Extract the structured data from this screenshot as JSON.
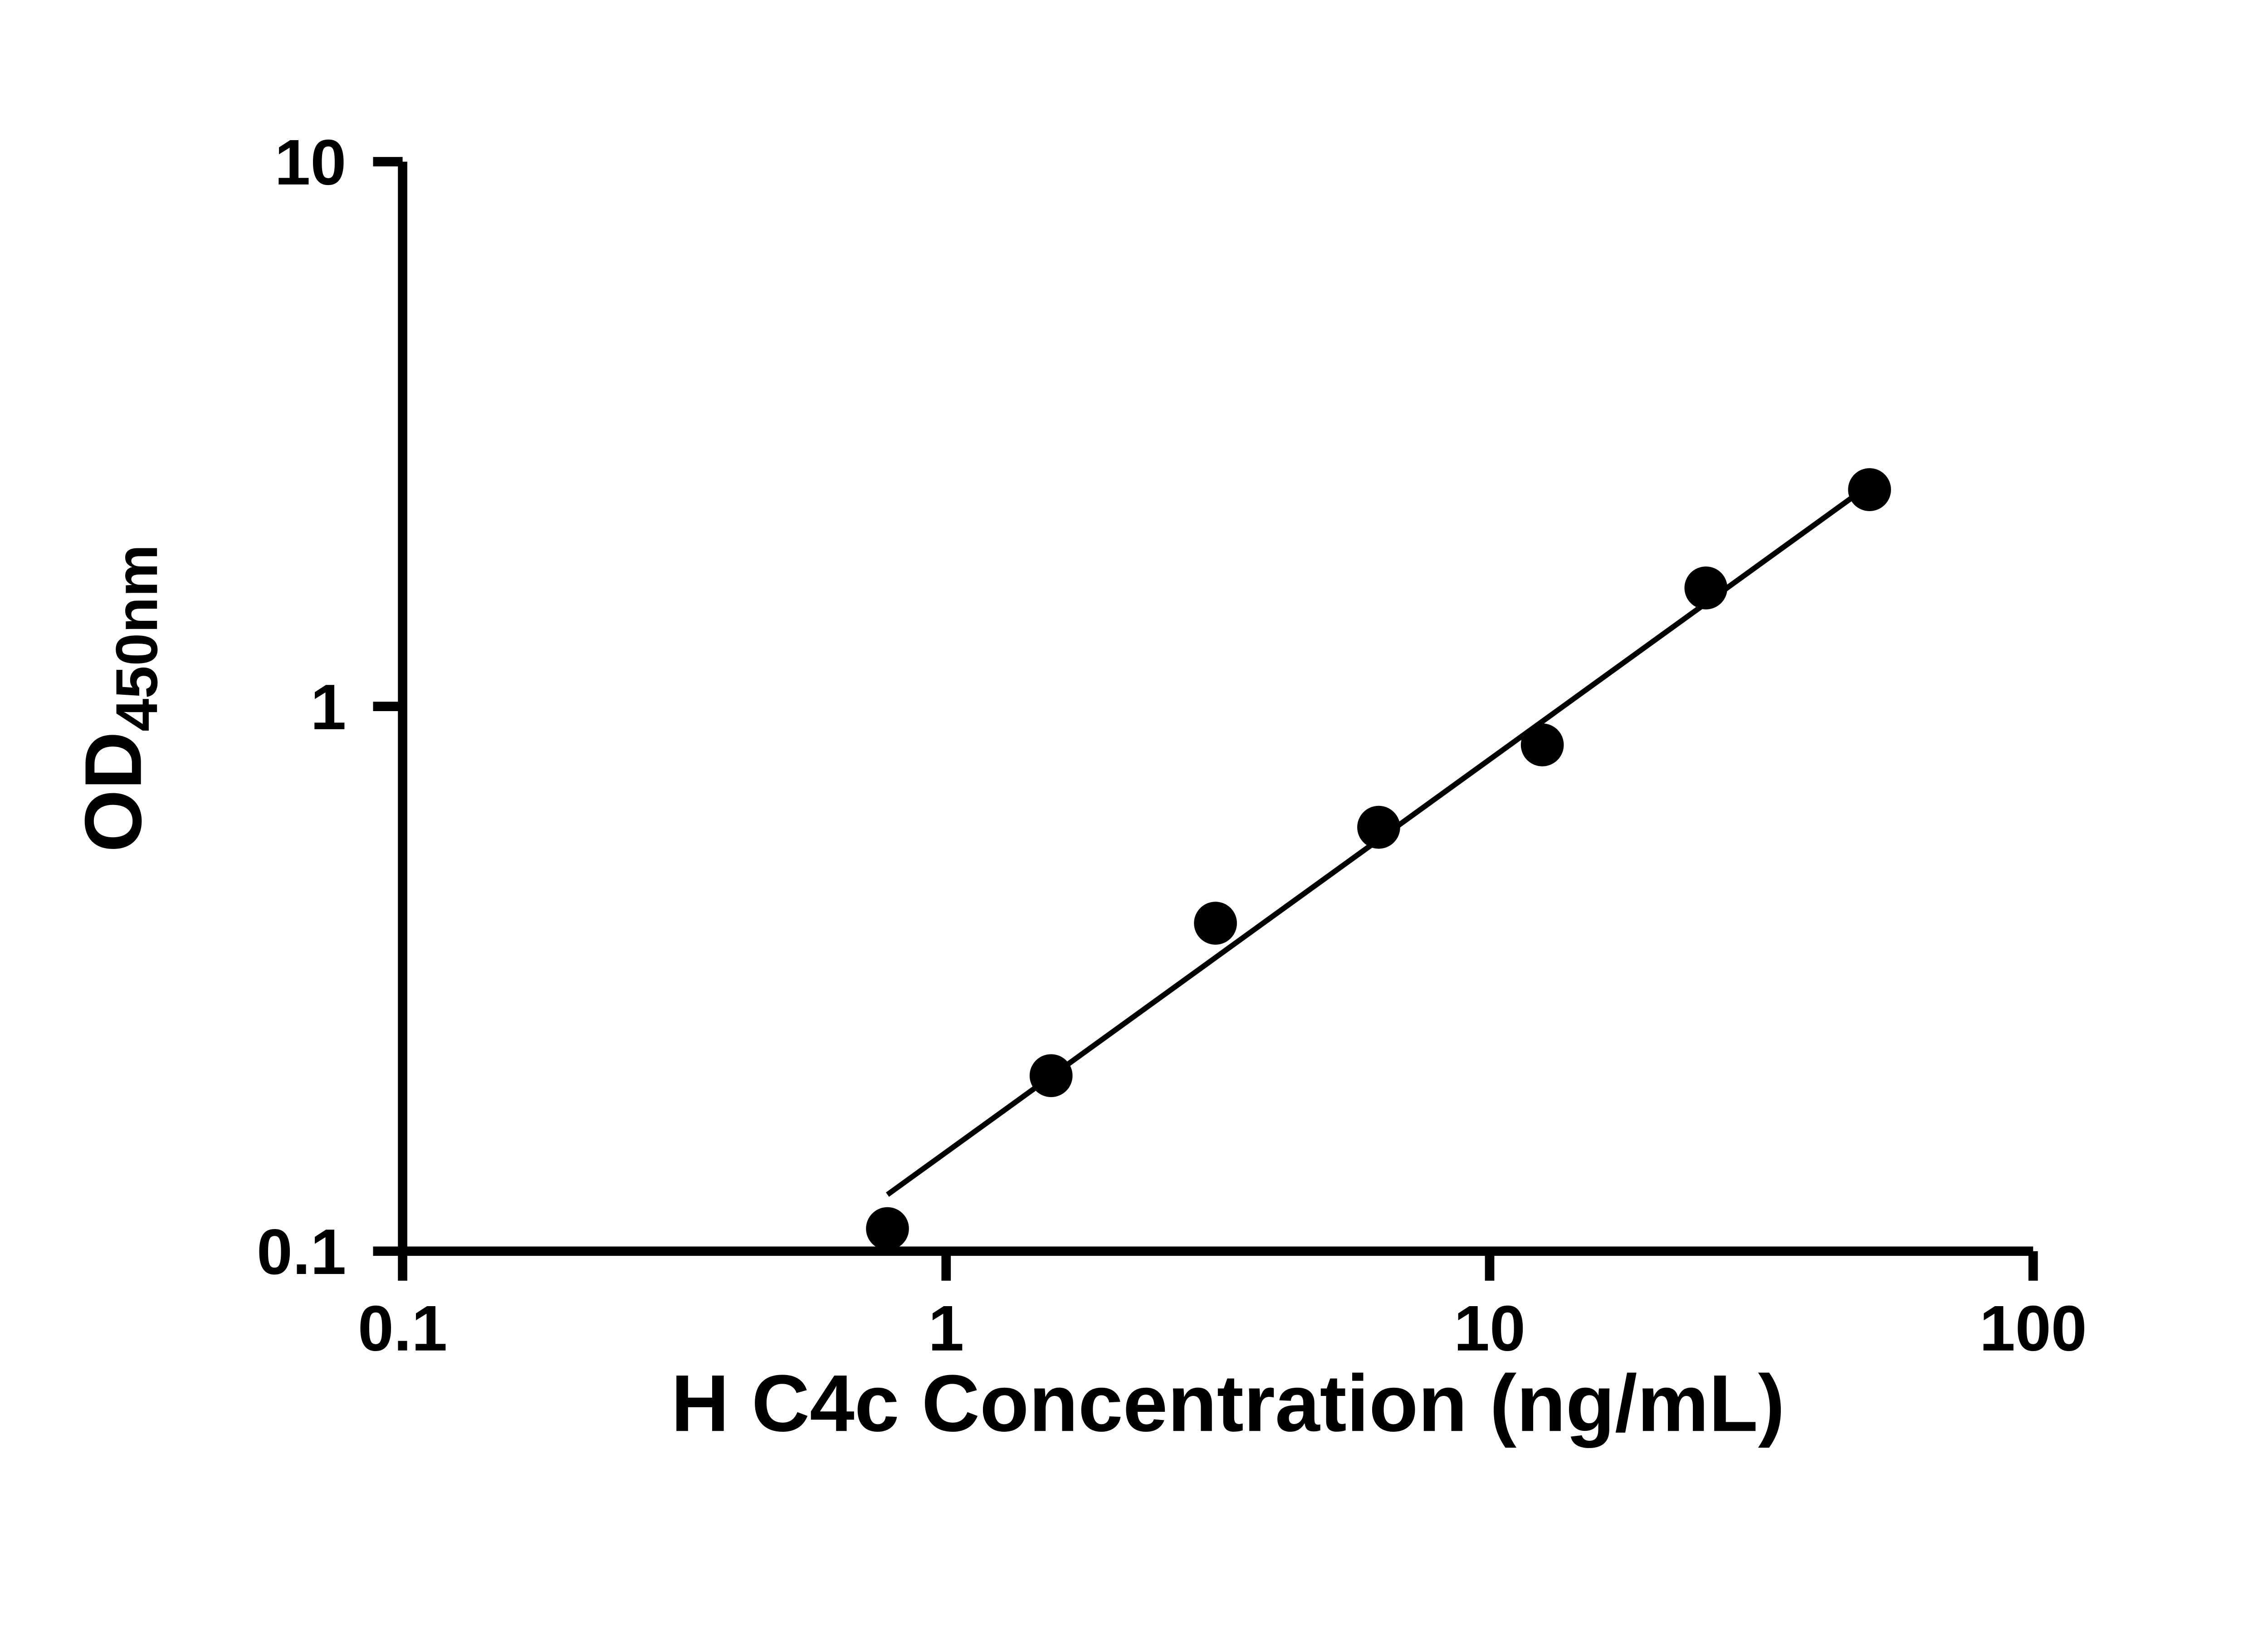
{
  "page": {
    "background_color": "#ffffff"
  },
  "chart_data": {
    "type": "scatter",
    "title": "",
    "xlabel": "H C4c Concentration (ng/mL)",
    "ylabel_main": "OD",
    "ylabel_sub": "450nm",
    "x_scale": "log",
    "y_scale": "log",
    "xlim": [
      0.1,
      100
    ],
    "ylim": [
      0.1,
      10
    ],
    "grid": false,
    "legend": "none",
    "x_ticks": [
      {
        "v": 0.1,
        "label": "0.1"
      },
      {
        "v": 1,
        "label": "1"
      },
      {
        "v": 10,
        "label": "10"
      },
      {
        "v": 100,
        "label": "100"
      }
    ],
    "y_ticks": [
      {
        "v": 0.1,
        "label": "0.1"
      },
      {
        "v": 1,
        "label": "1"
      },
      {
        "v": 10,
        "label": "10"
      }
    ],
    "series": [
      {
        "name": "standard-curve",
        "marker": "circle",
        "marker_color": "#000000",
        "points": [
          {
            "x": 0.78,
            "y": 0.11
          },
          {
            "x": 1.56,
            "y": 0.21
          },
          {
            "x": 3.13,
            "y": 0.4
          },
          {
            "x": 6.25,
            "y": 0.6
          },
          {
            "x": 12.5,
            "y": 0.85
          },
          {
            "x": 25,
            "y": 1.65
          },
          {
            "x": 50,
            "y": 2.5
          }
        ]
      }
    ],
    "trendline": {
      "x1": 0.78,
      "y1": 0.127,
      "x2": 50,
      "y2": 2.55,
      "color": "#000000"
    }
  }
}
